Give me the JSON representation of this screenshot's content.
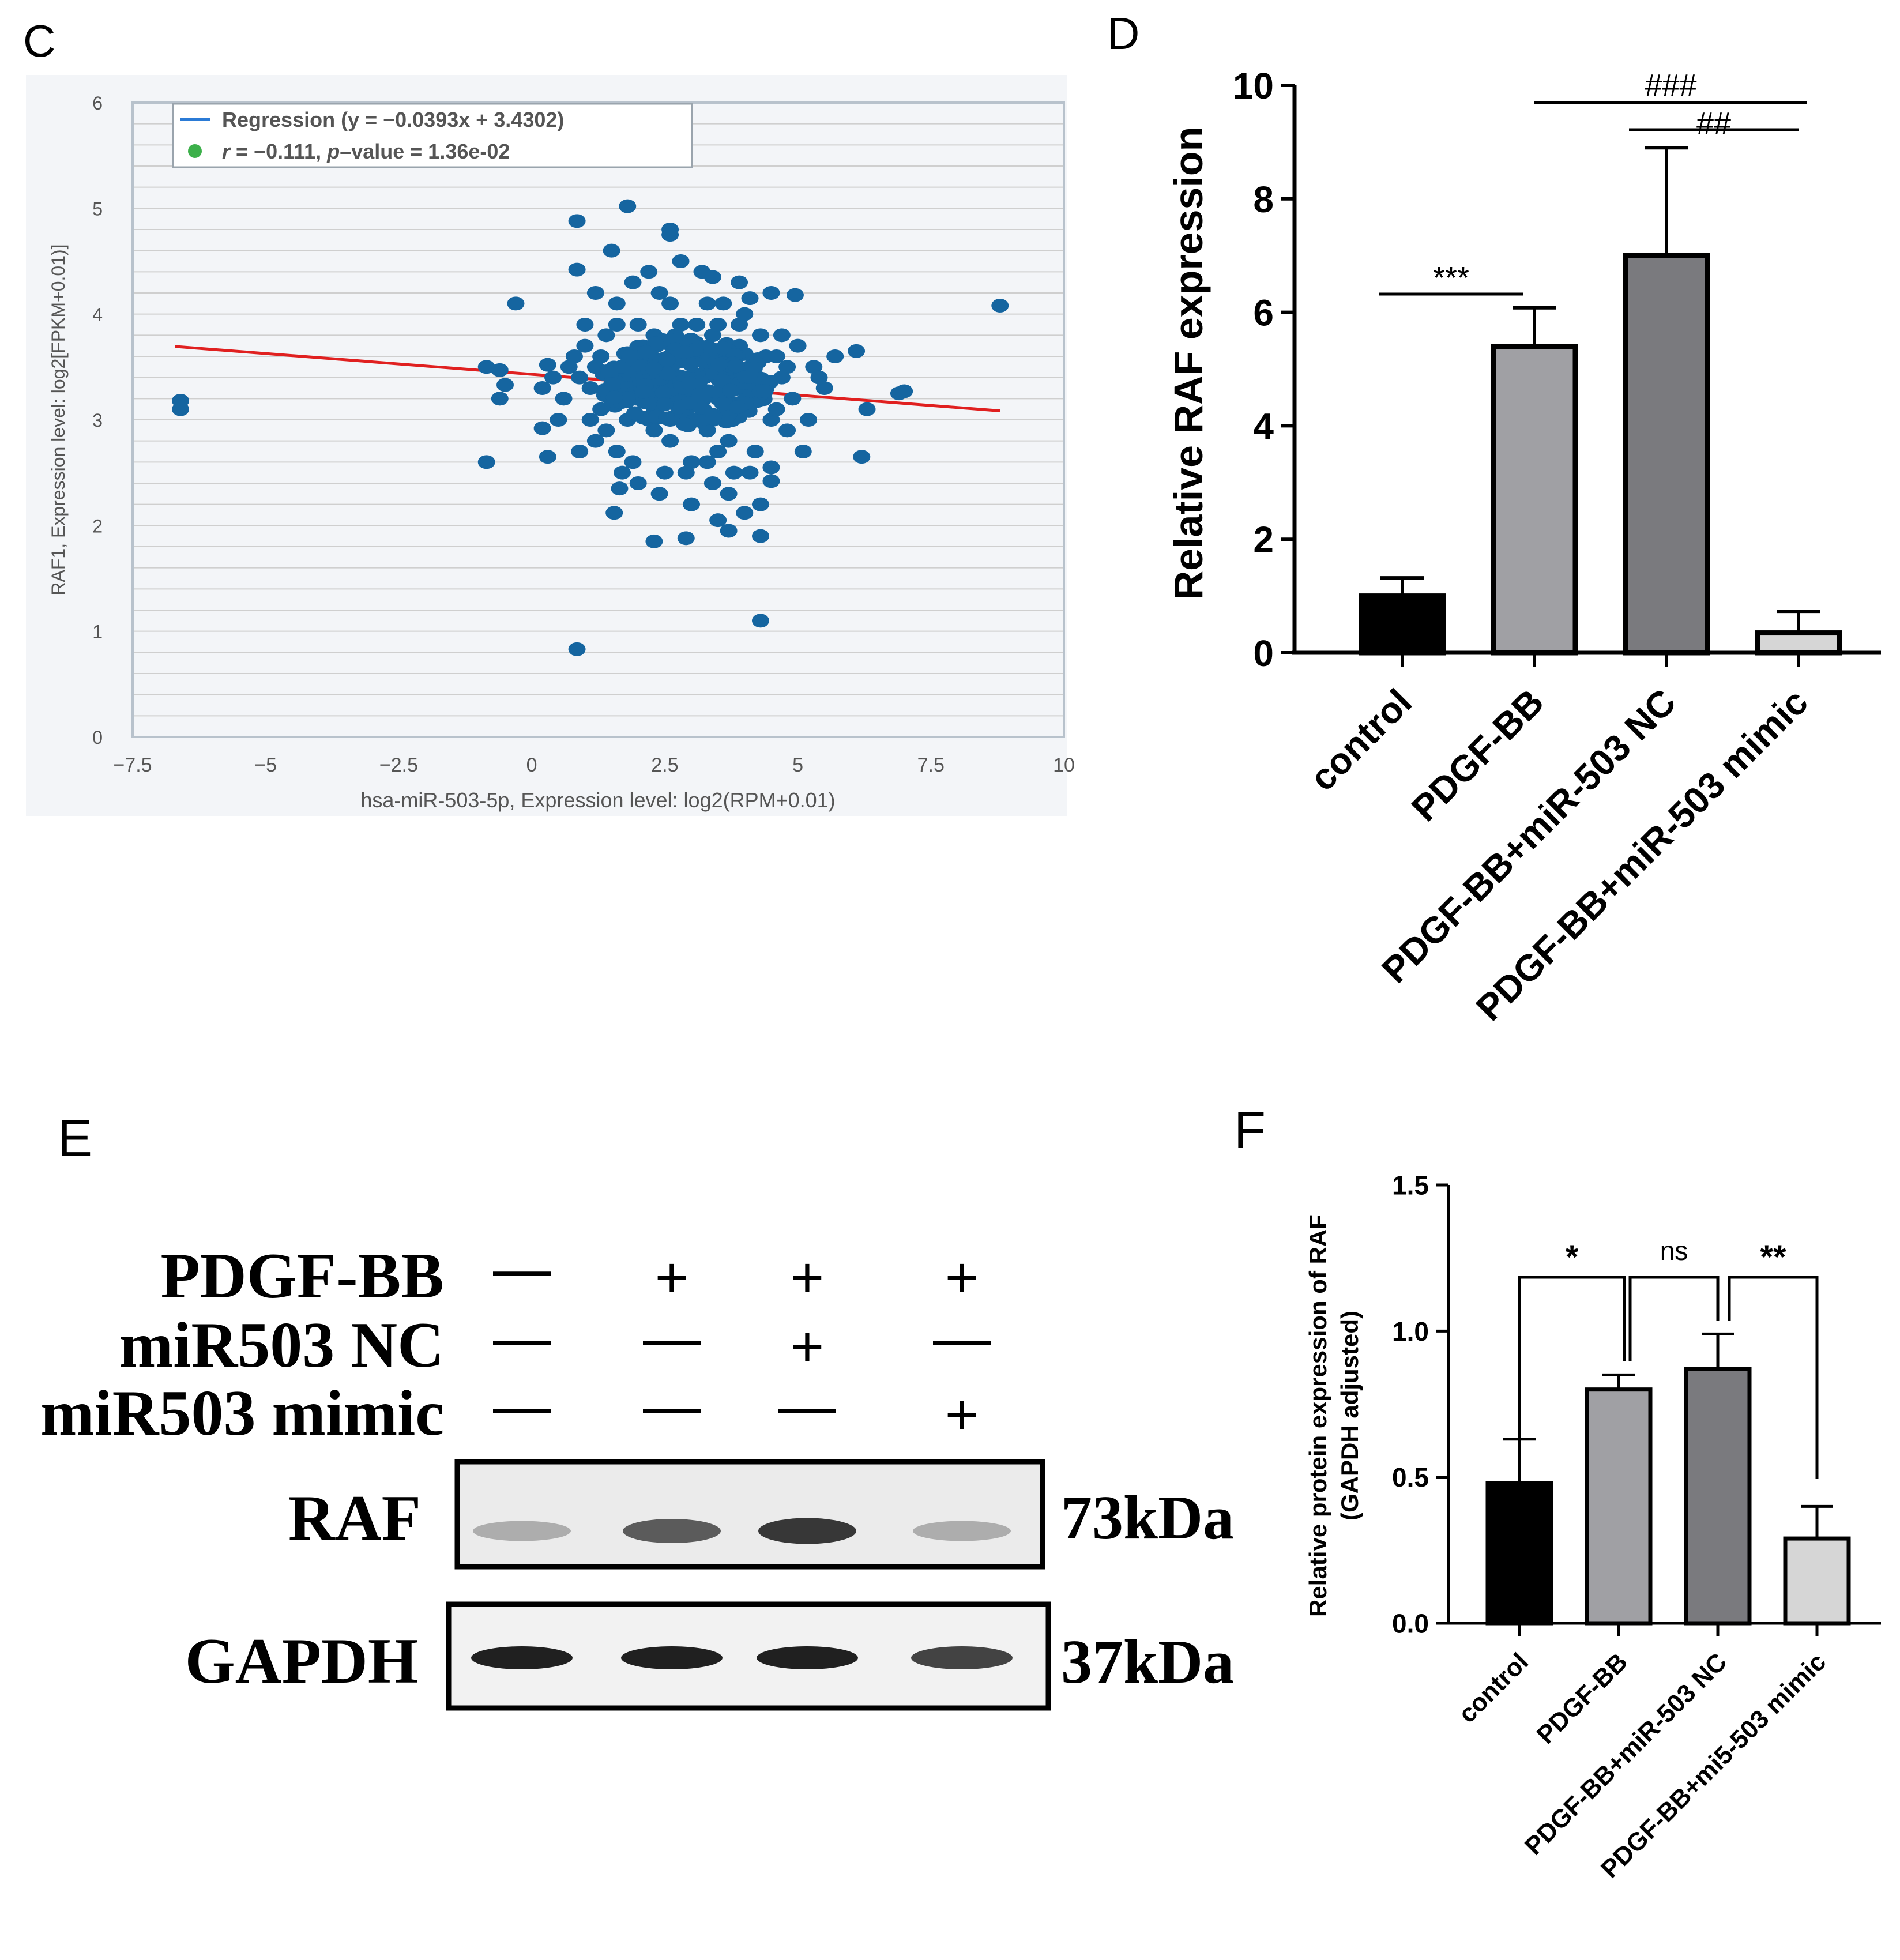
{
  "colors": {
    "scatter_point": "#1565a0",
    "regression_line": "#e02020",
    "legend_line": "#2b7bd6",
    "legend_dot": "#3cb04a",
    "grid": "#cfcfcf",
    "plot_border": "#b8c2cc",
    "bar_control": "#000000",
    "bar_pdgf": "#a0a0a4",
    "bar_nc": "#7a7a7e",
    "bar_mimic": "#d6d6d6"
  },
  "panel_labels": {
    "c": "C",
    "d": "D",
    "e": "E",
    "f": "F"
  },
  "chart_data": [
    {
      "type": "scatter",
      "panel": "C",
      "xlabel": "hsa-miR-503-5p, Expression level: log2(RPM+0.01)",
      "ylabel": "RAF1, Expression level: log2[FPKM+0.01)]",
      "xlim": [
        -7.5,
        10
      ],
      "ylim": [
        0,
        6
      ],
      "xticks": [
        "−7.5",
        "−5",
        "−2.5",
        "0",
        "2.5",
        "5",
        "7.5",
        "10"
      ],
      "yticks": [
        "0",
        "1",
        "2",
        "3",
        "4",
        "5",
        "6"
      ],
      "grid": true,
      "legend": {
        "position": "top-left",
        "regression_prefix": "Regression (y = −0.0393x + 3.4302)",
        "stat_r": "r",
        "stat_r_value": " = −0.111, ",
        "stat_p": "p",
        "stat_p_value": "–value = 1.36e-02"
      },
      "regression": {
        "slope": -0.0393,
        "intercept": 3.4302,
        "x_range": [
          -6.7,
          8.8
        ]
      },
      "points": [
        [
          -6.6,
          3.18
        ],
        [
          -6.6,
          3.1
        ],
        [
          8.8,
          4.08
        ],
        [
          0.85,
          0.83
        ],
        [
          4.3,
          1.1
        ],
        [
          -0.85,
          2.6
        ],
        [
          -0.85,
          3.5
        ],
        [
          -0.6,
          3.47
        ],
        [
          -0.5,
          3.33
        ],
        [
          -0.6,
          3.2
        ],
        [
          -0.3,
          4.1
        ],
        [
          0.3,
          3.52
        ],
        [
          0.2,
          2.92
        ],
        [
          0.3,
          2.65
        ],
        [
          0.85,
          4.88
        ],
        [
          1.8,
          5.02
        ],
        [
          2.6,
          4.8
        ],
        [
          2.6,
          4.75
        ],
        [
          0.85,
          4.42
        ],
        [
          1.5,
          4.6
        ],
        [
          1.55,
          2.12
        ],
        [
          1.65,
          2.35
        ],
        [
          2.3,
          1.85
        ],
        [
          2.9,
          1.88
        ],
        [
          3.5,
          2.05
        ],
        [
          3.5,
          2.7
        ],
        [
          3.7,
          1.95
        ],
        [
          4.0,
          2.12
        ],
        [
          4.3,
          1.9
        ],
        [
          4.3,
          2.2
        ],
        [
          4.5,
          2.42
        ],
        [
          4.5,
          2.55
        ],
        [
          5.1,
          2.7
        ],
        [
          5.3,
          3.5
        ],
        [
          5.5,
          3.3
        ],
        [
          5.7,
          3.6
        ],
        [
          6.1,
          3.65
        ],
        [
          6.2,
          2.65
        ],
        [
          6.3,
          3.1
        ],
        [
          6.9,
          3.25
        ],
        [
          7.0,
          3.27
        ],
        [
          4.95,
          4.18
        ],
        [
          4.5,
          4.2
        ],
        [
          4.1,
          4.15
        ],
        [
          3.9,
          4.3
        ],
        [
          3.4,
          4.35
        ],
        [
          1.1,
          3.0
        ],
        [
          1.2,
          2.8
        ],
        [
          1.3,
          3.1
        ],
        [
          1.0,
          3.9
        ],
        [
          0.8,
          3.6
        ],
        [
          0.6,
          3.2
        ],
        [
          0.5,
          3.0
        ],
        [
          0.9,
          3.4
        ],
        [
          1.0,
          3.7
        ],
        [
          1.2,
          3.5
        ],
        [
          1.4,
          3.8
        ],
        [
          1.6,
          4.1
        ],
        [
          1.7,
          3.4
        ],
        [
          1.8,
          3.0
        ],
        [
          1.9,
          2.6
        ],
        [
          2.0,
          3.9
        ],
        [
          2.1,
          3.6
        ],
        [
          2.2,
          3.2
        ],
        [
          2.3,
          2.9
        ],
        [
          2.4,
          4.2
        ],
        [
          2.5,
          3.5
        ],
        [
          2.6,
          2.8
        ],
        [
          2.7,
          3.3
        ],
        [
          2.8,
          3.9
        ],
        [
          2.9,
          3.1
        ],
        [
          3.0,
          2.6
        ],
        [
          3.1,
          3.7
        ],
        [
          3.2,
          3.4
        ],
        [
          3.3,
          2.9
        ],
        [
          3.4,
          3.8
        ],
        [
          3.5,
          3.2
        ],
        [
          3.6,
          3.6
        ],
        [
          3.7,
          2.8
        ],
        [
          3.8,
          3.4
        ],
        [
          3.9,
          3.9
        ],
        [
          4.0,
          3.1
        ],
        [
          4.1,
          3.5
        ],
        [
          4.2,
          2.7
        ],
        [
          4.3,
          3.8
        ],
        [
          4.4,
          3.3
        ],
        [
          4.5,
          3.0
        ],
        [
          4.6,
          3.6
        ],
        [
          4.7,
          3.4
        ],
        [
          4.8,
          2.9
        ],
        [
          4.9,
          3.2
        ],
        [
          5.0,
          3.7
        ],
        [
          1.5,
          3.3
        ],
        [
          1.7,
          2.5
        ],
        [
          2.0,
          2.4
        ],
        [
          2.2,
          4.4
        ],
        [
          2.4,
          2.3
        ],
        [
          2.8,
          4.5
        ],
        [
          3.0,
          2.2
        ],
        [
          3.2,
          4.4
        ],
        [
          3.4,
          2.4
        ],
        [
          3.6,
          4.1
        ],
        [
          3.8,
          2.5
        ],
        [
          4.0,
          4.0
        ],
        [
          2.1,
          3.3
        ],
        [
          2.3,
          3.5
        ],
        [
          2.5,
          3.2
        ],
        [
          2.7,
          3.6
        ],
        [
          2.9,
          3.4
        ],
        [
          3.1,
          3.2
        ],
        [
          3.3,
          3.5
        ],
        [
          2.2,
          3.0
        ],
        [
          2.6,
          3.0
        ],
        [
          3.0,
          3.0
        ],
        [
          3.4,
          3.0
        ],
        [
          1.9,
          3.6
        ],
        [
          2.3,
          3.8
        ],
        [
          2.7,
          3.8
        ],
        [
          3.1,
          3.9
        ],
        [
          3.5,
          3.9
        ],
        [
          1.8,
          3.2
        ],
        [
          2.0,
          3.4
        ],
        [
          2.4,
          3.4
        ],
        [
          2.8,
          3.2
        ],
        [
          3.2,
          3.1
        ],
        [
          3.6,
          3.3
        ],
        [
          1.3,
          3.6
        ],
        [
          1.1,
          3.3
        ],
        [
          0.7,
          3.5
        ],
        [
          0.4,
          3.4
        ],
        [
          0.2,
          3.3
        ],
        [
          1.4,
          2.9
        ],
        [
          1.6,
          2.7
        ],
        [
          3.9,
          3.7
        ],
        [
          4.2,
          3.3
        ],
        [
          4.4,
          3.6
        ],
        [
          4.6,
          3.1
        ],
        [
          4.8,
          3.5
        ],
        [
          0.9,
          2.7
        ],
        [
          1.2,
          4.2
        ],
        [
          1.9,
          4.3
        ],
        [
          2.6,
          4.1
        ],
        [
          3.3,
          4.1
        ],
        [
          3.7,
          2.3
        ],
        [
          4.1,
          2.5
        ],
        [
          2.5,
          2.5
        ],
        [
          2.9,
          2.5
        ],
        [
          3.3,
          2.6
        ],
        [
          1.6,
          3.9
        ],
        [
          4.7,
          3.8
        ],
        [
          5.2,
          3.0
        ],
        [
          5.4,
          3.4
        ]
      ]
    },
    {
      "type": "bar",
      "panel": "D",
      "categories": [
        "control",
        "PDGF-BB",
        "PDGF-BB+miR-503 NC",
        "PDGF-BB+miR-503 mimic"
      ],
      "values": [
        1.0,
        5.4,
        7.0,
        0.35
      ],
      "errors": [
        0.32,
        0.68,
        1.9,
        0.38
      ],
      "ylabel": "Relative RAF expression",
      "ylim": [
        0,
        10
      ],
      "yticks": [
        "0",
        "2",
        "4",
        "6",
        "8",
        "10"
      ],
      "significance": [
        {
          "groups": [
            0,
            1
          ],
          "label": "***"
        },
        {
          "groups": [
            1,
            3
          ],
          "label": "###"
        },
        {
          "groups": [
            2,
            3
          ],
          "label": "##"
        }
      ]
    },
    {
      "type": "bar",
      "panel": "F",
      "categories": [
        "control",
        "PDGF-BB",
        "PDGF-BB+miR-503 NC",
        "PDGF-BB+mi5-503 mimic"
      ],
      "values": [
        0.48,
        0.8,
        0.87,
        0.29
      ],
      "errors": [
        0.15,
        0.05,
        0.12,
        0.11
      ],
      "ylabel_line1": "Relative protein expression of RAF",
      "ylabel_line2": "(GAPDH adjusted)",
      "ylim": [
        0,
        1.5
      ],
      "yticks": [
        "0.0",
        "0.5",
        "1.0",
        "1.5"
      ],
      "significance": [
        {
          "groups": [
            0,
            1
          ],
          "label": "*"
        },
        {
          "groups": [
            1,
            2
          ],
          "label": "ns"
        },
        {
          "groups": [
            2,
            3
          ],
          "label": "**"
        }
      ]
    }
  ],
  "western_blot": {
    "rows": [
      {
        "label": "PDGF-BB",
        "values": [
          "—",
          "+",
          "+",
          "+"
        ]
      },
      {
        "label": "miR503 NC",
        "values": [
          "—",
          "—",
          "+",
          "—"
        ]
      },
      {
        "label": "miR503 mimic",
        "values": [
          "—",
          "—",
          "—",
          "+"
        ]
      }
    ],
    "blots": [
      {
        "label": "RAF",
        "size": "73kDa",
        "band_intensity": [
          0.35,
          0.7,
          0.85,
          0.35
        ]
      },
      {
        "label": "GAPDH",
        "size": "37kDa",
        "band_intensity": [
          0.95,
          0.95,
          0.95,
          0.8
        ]
      }
    ]
  }
}
